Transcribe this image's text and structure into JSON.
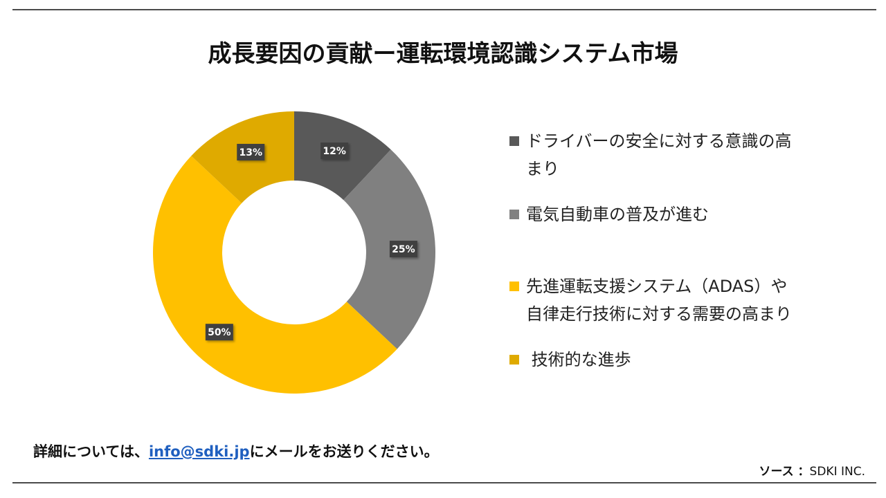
{
  "title": "成長要因の貢献ー運転環境認識システム市場",
  "chart_data": {
    "type": "pie",
    "donut": true,
    "legend": "right",
    "categories": [
      "ドライバーの安全に対する意識の高まり",
      "電気自動車の普及が進む",
      "先進運転支援システム（ADAS）や自律走行技術に対する需要の高まり",
      "技術的な進歩"
    ],
    "values": [
      12,
      25,
      50,
      13
    ],
    "data_labels": [
      "12%",
      "25%",
      "50%",
      "13%"
    ],
    "colors": [
      "#595959",
      "#808080",
      "#ffc000",
      "#dfaa00"
    ]
  },
  "legend": {
    "items": [
      {
        "lines": [
          "ドライバーの安全に対する意識の高",
          "まり"
        ],
        "color": "#595959"
      },
      {
        "lines": [
          "電気自動車の普及が進む"
        ],
        "color": "#808080"
      },
      {
        "lines": [
          "先進運転支援システム（ADAS）や",
          "自律走行技術に対する需要の高まり"
        ],
        "color": "#ffc000"
      },
      {
        "lines": [
          " 技術的な進歩"
        ],
        "color": "#dfaa00"
      }
    ]
  },
  "footer": {
    "prefix": "詳細については、",
    "email": "info@sdki.jp",
    "suffix": "にメールをお送りください。"
  },
  "source": {
    "key": "ソース ：",
    "value": "SDKI INC."
  }
}
